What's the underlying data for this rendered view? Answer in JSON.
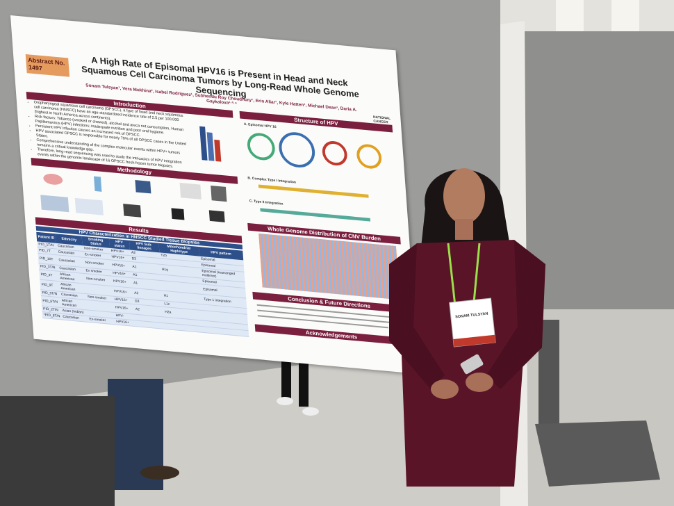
{
  "poster": {
    "abstract_label": "Abstract No. 1497",
    "title": "A High Rate of Episomal HPV16 is Present in Head and Neck Squamous Cell Carcinoma Tumors by Long-Read Whole Genome Sequencing",
    "authors": "Sonam Tulsyan¹, Vera Mukhina², Isabel Rodriguez¹, Subhendu Roy Choudhury¹, Erin Aliar¹, Kyle Hatten¹, Michael Dean¹, Daria A. Gaykalova¹·³·⁴",
    "institution": "NATIONAL CANCER INSTITUTE",
    "introduction": {
      "heading": "Introduction",
      "bullets": [
        "Oropharyngeal squamous cell carcinoma (OPSCC), a type of head and neck squamous cell carcinoma (HNSCC) have an age-standardized incidence rate of 2.5 per 100,000 (highest in North America across continents).",
        "Risk factors: Tobacco (smoked or chewed), alcohol and areca nut consumption, Human Papillomavirus (HPV) infections; inadequate nutrition and poor oral hygiene.",
        "Persistent HPV infection causes an increased risk of OPSCC.",
        "HPV associated OPSCC is responsible for nearly 70% of all OPSCC cases in the United States.",
        "Comprehensive understanding of the complex molecular events within HPV+ tumors remains a critical knowledge gap.",
        "Therefore, long-read sequencing was used to study the intricacies of HPV integration events within the genomic landscape of 16 OPSCC fresh frozen tumor biopsies."
      ]
    },
    "methodology": {
      "heading": "Methodology"
    },
    "results": {
      "heading": "Results",
      "table": {
        "title": "HPV Characterization in HNSCC Studied Tissue Biopsies",
        "columns": [
          "Patient ID",
          "Ethnicity",
          "Smoking Status",
          "HPV status",
          "HPV Sub-lineages",
          "Mitochondrial Haplotype",
          "HPV pattern"
        ],
        "rows": [
          [
            "PID_1T/N",
            "Caucasian",
            "Non-smoker",
            "HPV16+",
            "A2",
            "T2b",
            "Episomal"
          ],
          [
            "PID_7T",
            "Caucasian",
            "Ex-smoker",
            "HPV16+",
            "D3",
            "",
            "Episomal"
          ],
          [
            "PID_10T",
            "Caucasian",
            "Non-smoker",
            "HPV16+",
            "A1",
            "H1q",
            "Episomal (rearranged multimer)"
          ],
          [
            "PID_3T/N",
            "Caucasian",
            "Ex smoker",
            "HPV16+",
            "A1",
            "",
            "Episomal"
          ],
          [
            "PID_4T",
            "African American",
            "Non-smoker",
            "HPV16+",
            "A1",
            "",
            "Episomal"
          ],
          [
            "PID_9T",
            "African American",
            "",
            "HPV16+",
            "A2",
            "H1",
            "Type 1 integration"
          ],
          [
            "PID_5T/N",
            "Caucasian",
            "Non-smoker",
            "HPV16+",
            "D3",
            "L1c",
            ""
          ],
          [
            "PID_6T/N",
            "African American",
            "",
            "HPV16+",
            "A2",
            "H2a",
            ""
          ],
          [
            "PID_2T/N",
            "Asian (Indian)",
            "",
            "HPV-",
            "",
            "",
            ""
          ],
          [
            "*PID_8T/N",
            "Caucasian",
            "Ex-smoker",
            "HPV16+",
            "",
            "",
            ""
          ]
        ]
      }
    },
    "structure": {
      "heading": "Structure of HPV",
      "panels": [
        "A. Episomal HPV 16",
        "B. Complex Type I Integration",
        "C. Type II Integration"
      ]
    },
    "cnv": {
      "heading": "Whole Genome Distribution of CNV Burden"
    },
    "conclusion": {
      "heading": "Conclusion & Future Directions"
    },
    "acknowledgements": {
      "heading": "Acknowledgements"
    }
  },
  "badge": {
    "name": "SONAM TULSYAN"
  }
}
